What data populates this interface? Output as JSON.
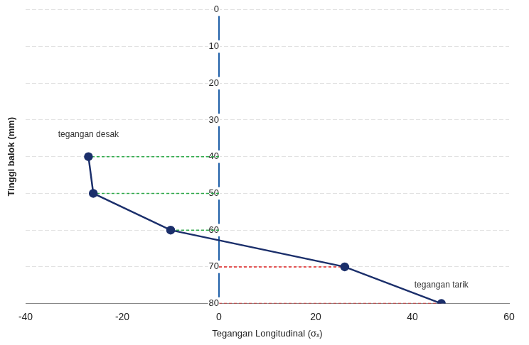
{
  "chart_data": {
    "type": "line",
    "x_label": "Tegangan Longitudinal (σₓ)",
    "y_label": "Tinggi balok (mm)",
    "x": [
      -27,
      -26,
      -10,
      26,
      46
    ],
    "values": [
      40,
      50,
      60,
      70,
      80
    ],
    "color": "#1b2f6b",
    "marker": "circle",
    "xlim": [
      -40,
      60
    ],
    "xticks": [
      -40,
      -20,
      0,
      20,
      40,
      60
    ],
    "ylim": [
      80,
      0
    ],
    "yticks": [
      0,
      10,
      20,
      30,
      40,
      50,
      60,
      70,
      80
    ],
    "grid": true,
    "annotations": [
      {
        "text": "tegangan desak",
        "x": -27,
        "y": 34
      },
      {
        "text": "tegangan tarik",
        "x": 46,
        "y": 75
      }
    ]
  }
}
